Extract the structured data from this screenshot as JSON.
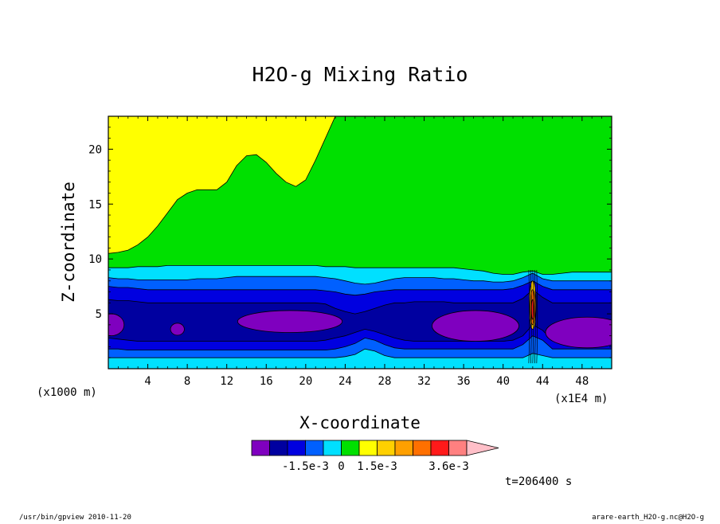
{
  "chart_data": {
    "type": "heatmap",
    "title": "H2O-g Mixing Ratio",
    "xlabel": "X-coordinate",
    "ylabel": "Z-coordinate",
    "x_unit_left": "(x1000 m)",
    "x_unit_right": "(x1E4 m)",
    "xlim": [
      0,
      51
    ],
    "ylim": [
      0,
      23
    ],
    "x_ticks": [
      4,
      8,
      12,
      16,
      20,
      24,
      28,
      32,
      36,
      40,
      44,
      48
    ],
    "y_ticks": [
      5,
      10,
      15,
      20
    ],
    "time_label": "t=206400 s",
    "colorbar": {
      "colors": [
        "#7f00bf",
        "#0000a0",
        "#0000e0",
        "#0060ff",
        "#00e0ff",
        "#00e000",
        "#ffff00",
        "#ffd000",
        "#ffa000",
        "#ff7000",
        "#ff1a1a",
        "#ff8080"
      ],
      "extend_color": "#ffbfc8",
      "tick_labels": [
        {
          "label": "-1.5e-3",
          "index": 3
        },
        {
          "label": "0",
          "index": 5
        },
        {
          "label": "1.5e-3",
          "index": 7
        },
        {
          "label": "3.6e-3",
          "index": 11
        }
      ]
    },
    "bands": [
      {
        "color": "#00e0ff",
        "zt": [
          1.0,
          1.0,
          1.0,
          1.0,
          1.0,
          1.0,
          1.0,
          1.0,
          1.0,
          1.0,
          1.0,
          1.0,
          1.0,
          1.0,
          1.0,
          1.0,
          1.0,
          1.0,
          1.0,
          1.0,
          1.0,
          1.0,
          1.0,
          1.0,
          1.1,
          1.3,
          1.8,
          1.6,
          1.2,
          1.0,
          1.0,
          1.0,
          1.0,
          1.0,
          1.0,
          1.0,
          1.0,
          1.0,
          1.0,
          1.0,
          1.0,
          1.0,
          1.0,
          1.4,
          1.2,
          1.0,
          1.0,
          1.0,
          1.0,
          1.0,
          1.0,
          1.0
        ]
      },
      {
        "color": "#0060ff",
        "zt": [
          1.8,
          1.8,
          1.7,
          1.7,
          1.7,
          1.7,
          1.7,
          1.7,
          1.7,
          1.7,
          1.7,
          1.7,
          1.7,
          1.7,
          1.7,
          1.7,
          1.7,
          1.7,
          1.7,
          1.7,
          1.7,
          1.7,
          1.7,
          1.8,
          2.0,
          2.3,
          2.8,
          2.6,
          2.2,
          1.9,
          1.8,
          1.8,
          1.8,
          1.8,
          1.8,
          1.8,
          1.8,
          1.8,
          1.8,
          1.8,
          1.8,
          1.8,
          2.2,
          3.0,
          2.6,
          1.8,
          1.8,
          1.8,
          1.8,
          1.8,
          1.8,
          1.8
        ]
      },
      {
        "color": "#0000e0",
        "zt": [
          2.8,
          2.7,
          2.6,
          2.5,
          2.5,
          2.5,
          2.5,
          2.5,
          2.5,
          2.5,
          2.5,
          2.5,
          2.5,
          2.5,
          2.5,
          2.5,
          2.5,
          2.5,
          2.5,
          2.5,
          2.5,
          2.5,
          2.6,
          2.8,
          3.0,
          3.3,
          3.6,
          3.4,
          3.1,
          2.8,
          2.6,
          2.5,
          2.5,
          2.5,
          2.5,
          2.5,
          2.5,
          2.5,
          2.5,
          2.5,
          2.5,
          2.6,
          3.0,
          4.0,
          3.5,
          2.6,
          2.5,
          2.5,
          2.5,
          2.5,
          2.5,
          2.5
        ]
      },
      {
        "color": "#0000a0",
        "zt": [
          6.3,
          6.2,
          6.2,
          6.1,
          6.0,
          6.0,
          6.0,
          6.0,
          6.0,
          6.0,
          6.0,
          6.0,
          6.0,
          6.0,
          6.0,
          6.0,
          6.0,
          6.0,
          6.0,
          6.0,
          6.0,
          6.0,
          5.9,
          5.5,
          5.2,
          5.0,
          5.2,
          5.5,
          5.8,
          6.0,
          6.0,
          6.1,
          6.1,
          6.1,
          6.1,
          6.0,
          6.0,
          6.0,
          6.0,
          6.0,
          6.0,
          6.0,
          6.4,
          7.2,
          6.5,
          6.0,
          6.0,
          6.0,
          6.0,
          6.0,
          6.0,
          6.0
        ]
      },
      {
        "color": "#0000e0",
        "zt": [
          7.5,
          7.4,
          7.4,
          7.3,
          7.2,
          7.2,
          7.2,
          7.2,
          7.2,
          7.2,
          7.2,
          7.2,
          7.2,
          7.2,
          7.2,
          7.2,
          7.2,
          7.2,
          7.2,
          7.2,
          7.2,
          7.2,
          7.1,
          7.0,
          6.8,
          6.7,
          6.8,
          7.0,
          7.1,
          7.2,
          7.2,
          7.2,
          7.2,
          7.2,
          7.2,
          7.2,
          7.2,
          7.2,
          7.2,
          7.2,
          7.2,
          7.3,
          7.6,
          8.0,
          7.5,
          7.2,
          7.2,
          7.2,
          7.2,
          7.2,
          7.2,
          7.2
        ]
      },
      {
        "color": "#0060ff",
        "zt": [
          8.3,
          8.2,
          8.2,
          8.1,
          8.1,
          8.1,
          8.1,
          8.1,
          8.1,
          8.2,
          8.2,
          8.2,
          8.3,
          8.4,
          8.4,
          8.4,
          8.4,
          8.4,
          8.4,
          8.4,
          8.4,
          8.4,
          8.3,
          8.2,
          8.0,
          7.8,
          7.7,
          7.8,
          8.0,
          8.2,
          8.3,
          8.3,
          8.3,
          8.3,
          8.2,
          8.2,
          8.1,
          8.0,
          8.0,
          7.9,
          7.9,
          8.0,
          8.3,
          8.7,
          8.2,
          8.0,
          8.0,
          8.0,
          8.0,
          8.0,
          8.0,
          8.0
        ]
      },
      {
        "color": "#00e0ff",
        "zt": [
          9.2,
          9.2,
          9.2,
          9.3,
          9.3,
          9.3,
          9.4,
          9.4,
          9.4,
          9.4,
          9.4,
          9.4,
          9.4,
          9.4,
          9.4,
          9.4,
          9.4,
          9.4,
          9.4,
          9.4,
          9.4,
          9.4,
          9.3,
          9.3,
          9.3,
          9.2,
          9.2,
          9.2,
          9.2,
          9.2,
          9.2,
          9.2,
          9.2,
          9.2,
          9.2,
          9.2,
          9.1,
          9.0,
          8.9,
          8.7,
          8.6,
          8.6,
          8.8,
          8.9,
          8.6,
          8.6,
          8.7,
          8.8,
          8.8,
          8.8,
          8.8,
          8.8
        ]
      },
      {
        "color": "#00e000",
        "zt": [
          10.5,
          10.6,
          10.8,
          11.3,
          12.0,
          13.0,
          14.2,
          15.4,
          16.0,
          16.3,
          16.3,
          16.3,
          17.0,
          18.5,
          19.4,
          19.5,
          18.8,
          17.8,
          17.0,
          16.6,
          17.2,
          19.0,
          21.0,
          23.0,
          23.0,
          23.0,
          23.0,
          23.0,
          23.0,
          23.0,
          23.0,
          23.0,
          23.0,
          23.0,
          23.0,
          23.0,
          23.0,
          23.0,
          23.0,
          23.0,
          23.0,
          23.0,
          23.0,
          23.0,
          23.0,
          23.0,
          23.0,
          23.0,
          23.0,
          23.0,
          23.0,
          23.0
        ]
      }
    ]
  },
  "footer": {
    "left": "/usr/bin/gpview  2010-11-20",
    "right": "arare-earth_H2O-g.nc@H2O-g"
  }
}
